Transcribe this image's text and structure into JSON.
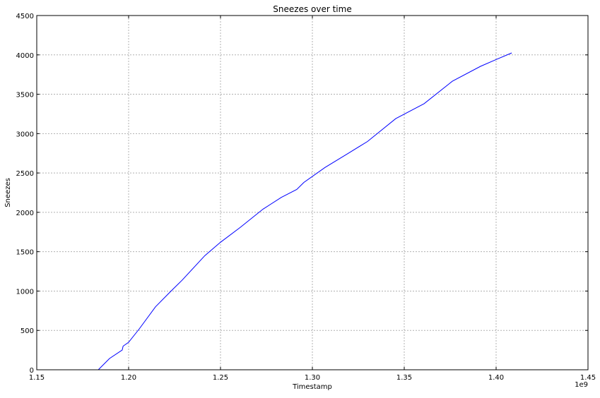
{
  "chart_data": {
    "type": "line",
    "title": "Sneezes over time",
    "xlabel": "Timestamp",
    "ylabel": "Sneezes",
    "x_offset_label": "1e9",
    "xlim": [
      1.15,
      1.45
    ],
    "ylim": [
      0,
      4500
    ],
    "x_ticks": [
      "1.15",
      "1.20",
      "1.25",
      "1.30",
      "1.35",
      "1.40",
      "1.45"
    ],
    "y_ticks": [
      "0",
      "500",
      "1000",
      "1500",
      "2000",
      "2500",
      "3000",
      "3500",
      "4000",
      "4500"
    ],
    "grid": true,
    "line_color": "#0000ff",
    "series": [
      {
        "x": [
          1.1835,
          1.1896,
          1.1965,
          1.197,
          1.2,
          1.2058,
          1.2146,
          1.2231,
          1.2292,
          1.2415,
          1.25,
          1.2608,
          1.2731,
          1.2831,
          1.2915,
          1.2954,
          1.3069,
          1.3192,
          1.33,
          1.3454,
          1.3608,
          1.3762,
          1.3915,
          1.4004,
          1.4085
        ],
        "y": [
          0,
          143,
          250,
          300,
          350,
          520,
          800,
          1000,
          1140,
          1450,
          1620,
          1810,
          2040,
          2190,
          2290,
          2380,
          2570,
          2745,
          2900,
          3190,
          3380,
          3665,
          3855,
          3945,
          4025
        ]
      }
    ]
  }
}
